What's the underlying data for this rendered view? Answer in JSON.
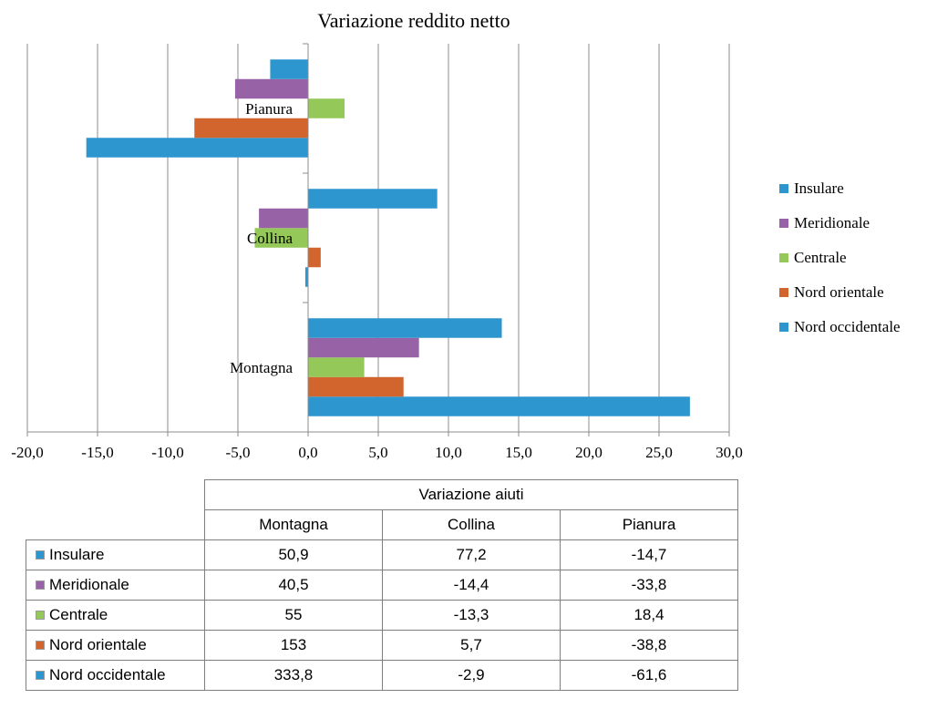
{
  "chart_data": [
    {
      "type": "bar",
      "orientation": "horizontal",
      "title": "Variazione reddito netto",
      "categories": [
        "Montagna",
        "Collina",
        "Pianura"
      ],
      "series": [
        {
          "name": "Nord occidentale",
          "color": "#2e96cf",
          "values": [
            27.2,
            -0.2,
            -15.8
          ]
        },
        {
          "name": "Nord orientale",
          "color": "#d2642d",
          "values": [
            6.8,
            0.9,
            -8.1
          ]
        },
        {
          "name": "Centrale",
          "color": "#94c858",
          "values": [
            4.0,
            -3.8,
            2.6
          ]
        },
        {
          "name": "Meridionale",
          "color": "#9762a6",
          "values": [
            7.9,
            -3.5,
            -5.2
          ]
        },
        {
          "name": "Insulare",
          "color": "#2e96cf",
          "values": [
            13.8,
            9.2,
            -2.7
          ]
        }
      ],
      "xlim": [
        -20,
        30
      ],
      "x_ticks": [
        "-20,0",
        "-15,0",
        "-10,0",
        "-5,0",
        "0,0",
        "5,0",
        "10,0",
        "15,0",
        "20,0",
        "25,0",
        "30,0"
      ],
      "grid": true,
      "legend_position": "right",
      "legend_order": [
        "Insulare",
        "Meridionale",
        "Centrale",
        "Nord orientale",
        "Nord occidentale"
      ]
    },
    {
      "type": "table",
      "title": "Variazione aiuti",
      "columns": [
        "Montagna",
        "Collina",
        "Pianura"
      ],
      "rows": [
        {
          "label": "Insulare",
          "color": "#2e96cf",
          "values": [
            "50,9",
            "77,2",
            "-14,7"
          ]
        },
        {
          "label": "Meridionale",
          "color": "#9762a6",
          "values": [
            "40,5",
            "-14,4",
            "-33,8"
          ]
        },
        {
          "label": "Centrale",
          "color": "#94c858",
          "values": [
            "55",
            "-13,3",
            "18,4"
          ]
        },
        {
          "label": "Nord orientale",
          "color": "#d2642d",
          "values": [
            "153",
            "5,7",
            "-38,8"
          ]
        },
        {
          "label": "Nord occidentale",
          "color": "#2e96cf",
          "values": [
            "333,8",
            "-2,9",
            "-61,6"
          ]
        }
      ]
    }
  ]
}
